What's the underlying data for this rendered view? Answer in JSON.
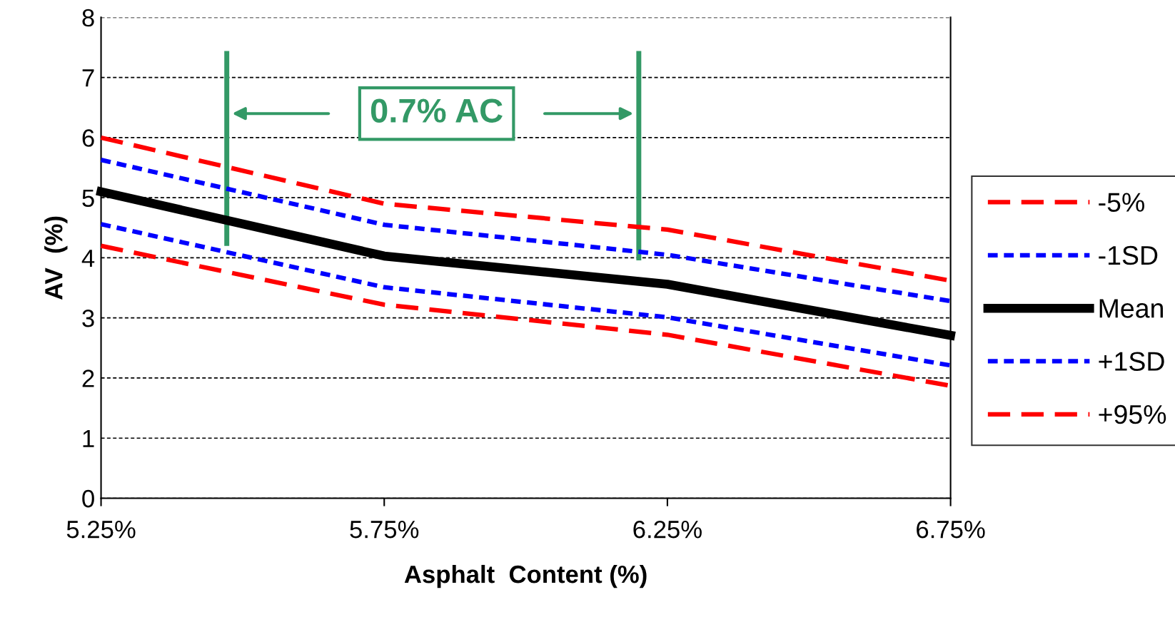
{
  "chart_data": {
    "type": "line",
    "xlabel": "Asphalt  Content (%)",
    "ylabel": "AV  (%)",
    "x": [
      5.25,
      5.75,
      6.25,
      6.75
    ],
    "series": [
      {
        "name": "-5%",
        "color": "#ff0000",
        "line_style": "dashed",
        "values": [
          6.0,
          4.9,
          4.47,
          3.62
        ]
      },
      {
        "name": "-1SD",
        "color": "#0000ff",
        "line_style": "dotted",
        "values": [
          5.63,
          4.55,
          4.05,
          3.28
        ]
      },
      {
        "name": "Mean",
        "color": "#000000",
        "line_style": "solid",
        "values": [
          5.1,
          4.03,
          3.56,
          2.71
        ]
      },
      {
        "name": "+1SD",
        "color": "#0000ff",
        "line_style": "dotted",
        "values": [
          4.56,
          3.51,
          3.01,
          2.21
        ]
      },
      {
        "name": "+95%",
        "color": "#ff0000",
        "line_style": "dashed",
        "values": [
          4.2,
          3.22,
          2.72,
          1.87
        ]
      }
    ],
    "xlim": [
      5.25,
      6.75
    ],
    "xticks": [
      {
        "value": 5.25,
        "label": "5.25%"
      },
      {
        "value": 5.75,
        "label": "5.75%"
      },
      {
        "value": 6.25,
        "label": "6.25%"
      },
      {
        "value": 6.75,
        "label": "6.75%"
      }
    ],
    "ylim": [
      0,
      8
    ],
    "yticks": [
      0,
      1,
      2,
      3,
      4,
      5,
      6,
      7,
      8
    ],
    "grid": "y",
    "legend": "right",
    "marker": "none",
    "annotations": [
      "0.7% AC"
    ]
  }
}
